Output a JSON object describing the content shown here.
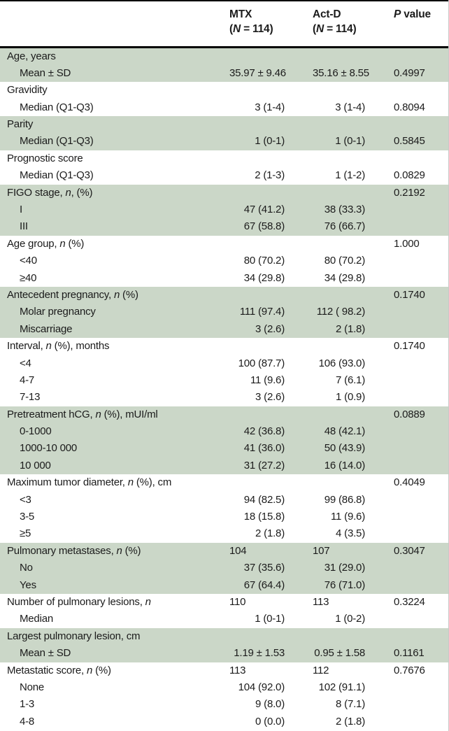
{
  "colors": {
    "section_green": "#cbd7c8",
    "rule_black": "#000000",
    "text": "#1b1b1b",
    "background": "#ffffff"
  },
  "table": {
    "header": {
      "mtx_line1": "MTX",
      "mtx_line2": "(*N* = 114)",
      "actd_line1": "Act-D",
      "actd_line2": "(*N* = 114)",
      "p_label": "*P* value"
    },
    "sections": [
      {
        "green": true,
        "rows": [
          {
            "label": "Age, years",
            "sub": false,
            "mtx": "",
            "actd": "",
            "p": ""
          },
          {
            "label": "Mean ± SD",
            "sub": true,
            "mtx": "35.97 ± 9.46",
            "actd": "35.16 ± 8.55",
            "p": "0.4997"
          }
        ]
      },
      {
        "green": false,
        "rows": [
          {
            "label": "Gravidity",
            "sub": false,
            "mtx": "",
            "actd": "",
            "p": ""
          },
          {
            "label": "Median (Q1-Q3)",
            "sub": true,
            "mtx": "3 (1-4)",
            "actd": "3 (1-4)",
            "p": "0.8094"
          }
        ]
      },
      {
        "green": true,
        "rows": [
          {
            "label": "Parity",
            "sub": false,
            "mtx": "",
            "actd": "",
            "p": ""
          },
          {
            "label": "Median (Q1-Q3)",
            "sub": true,
            "mtx": "1 (0-1)",
            "actd": "1 (0-1)",
            "p": "0.5845"
          }
        ]
      },
      {
        "green": false,
        "rows": [
          {
            "label": "Prognostic score",
            "sub": false,
            "mtx": "",
            "actd": "",
            "p": ""
          },
          {
            "label": "Median (Q1-Q3)",
            "sub": true,
            "mtx": "2 (1-3)",
            "actd": "1 (1-2)",
            "p": "0.0829"
          }
        ]
      },
      {
        "green": true,
        "rows": [
          {
            "label": "FIGO stage, *n*, (%)",
            "sub": false,
            "mtx": "",
            "actd": "",
            "p": "0.2192"
          },
          {
            "label": "I",
            "sub": true,
            "mtx": "47 (41.2)",
            "actd": "38 (33.3)",
            "p": ""
          },
          {
            "label": "III",
            "sub": true,
            "mtx": "67 (58.8)",
            "actd": "76 (66.7)",
            "p": ""
          }
        ]
      },
      {
        "green": false,
        "rows": [
          {
            "label": "Age group, *n* (%)",
            "sub": false,
            "mtx": "",
            "actd": "",
            "p": "1.000"
          },
          {
            "label": "<40",
            "sub": true,
            "mtx": "80 (70.2)",
            "actd": "80 (70.2)",
            "p": ""
          },
          {
            "label": "≥40",
            "sub": true,
            "mtx": "34 (29.8)",
            "actd": "34 (29.8)",
            "p": ""
          }
        ]
      },
      {
        "green": true,
        "rows": [
          {
            "label": "Antecedent pregnancy, *n* (%)",
            "sub": false,
            "mtx": "",
            "actd": "",
            "p": "0.1740"
          },
          {
            "label": "Molar pregnancy",
            "sub": true,
            "mtx": "111 (97.4)",
            "actd": "112 ( 98.2)",
            "p": ""
          },
          {
            "label": "Miscarriage",
            "sub": true,
            "mtx": "3 (2.6)",
            "actd": "2 (1.8)",
            "p": ""
          }
        ]
      },
      {
        "green": false,
        "rows": [
          {
            "label": "Interval, *n* (%), months",
            "sub": false,
            "mtx": "",
            "actd": "",
            "p": "0.1740"
          },
          {
            "label": "<4",
            "sub": true,
            "mtx": "100 (87.7)",
            "actd": "106 (93.0)",
            "p": ""
          },
          {
            "label": "4-7",
            "sub": true,
            "mtx": "11 (9.6)",
            "actd": "7 (6.1)",
            "p": ""
          },
          {
            "label": "7-13",
            "sub": true,
            "mtx": "3 (2.6)",
            "actd": "1 (0.9)",
            "p": ""
          }
        ]
      },
      {
        "green": true,
        "rows": [
          {
            "label": "Pretreatment hCG, *n* (%), mUI/ml",
            "sub": false,
            "mtx": "",
            "actd": "",
            "p": "0.0889"
          },
          {
            "label": "0-1000",
            "sub": true,
            "mtx": "42 (36.8)",
            "actd": "48 (42.1)",
            "p": ""
          },
          {
            "label": "1000-10 000",
            "sub": true,
            "mtx": "41 (36.0)",
            "actd": "50 (43.9)",
            "p": ""
          },
          {
            "label": "10 000",
            "sub": true,
            "mtx": "31 (27.2)",
            "actd": "16 (14.0)",
            "p": ""
          }
        ]
      },
      {
        "green": false,
        "rows": [
          {
            "label": "Maximum tumor diameter, *n* (%), cm",
            "sub": false,
            "mtx": "",
            "actd": "",
            "p": "0.4049"
          },
          {
            "label": "<3",
            "sub": true,
            "mtx": "94 (82.5)",
            "actd": "99 (86.8)",
            "p": ""
          },
          {
            "label": "3-5",
            "sub": true,
            "mtx": "18 (15.8)",
            "actd": "11 (9.6)",
            "p": ""
          },
          {
            "label": "≥5",
            "sub": true,
            "mtx": "2 (1.8)",
            "actd": "4 (3.5)",
            "p": ""
          }
        ]
      },
      {
        "green": true,
        "rows": [
          {
            "label": "Pulmonary metastases, *n* (%)",
            "sub": false,
            "mtx": "104",
            "actd": "107",
            "p": "0.3047"
          },
          {
            "label": "No",
            "sub": true,
            "mtx": "37 (35.6)",
            "actd": "31 (29.0)",
            "p": ""
          },
          {
            "label": "Yes",
            "sub": true,
            "mtx": "67 (64.4)",
            "actd": "76 (71.0)",
            "p": ""
          }
        ]
      },
      {
        "green": false,
        "rows": [
          {
            "label": "Number of pulmonary lesions, *n*",
            "sub": false,
            "mtx": "110",
            "actd": "113",
            "p": "0.3224"
          },
          {
            "label": "Median",
            "sub": true,
            "mtx": "1 (0-1)",
            "actd": "1 (0-2)",
            "p": ""
          }
        ]
      },
      {
        "green": true,
        "rows": [
          {
            "label": "Largest pulmonary lesion, cm",
            "sub": false,
            "mtx": "",
            "actd": "",
            "p": ""
          },
          {
            "label": "Mean ± SD",
            "sub": true,
            "mtx": "1.19 ± 1.53",
            "actd": "0.95 ± 1.58",
            "p": "0.1161"
          }
        ]
      },
      {
        "green": false,
        "rows": [
          {
            "label": "Metastatic score, *n* (%)",
            "sub": false,
            "mtx": "113",
            "actd": "112",
            "p": "0.7676"
          },
          {
            "label": "None",
            "sub": true,
            "mtx": "104 (92.0)",
            "actd": "102 (91.1)",
            "p": ""
          },
          {
            "label": "1-3",
            "sub": true,
            "mtx": "9 (8.0)",
            "actd": "8 (7.1)",
            "p": ""
          },
          {
            "label": "4-8",
            "sub": true,
            "mtx": "0 (0.0)",
            "actd": "2 (1.8)",
            "p": ""
          }
        ]
      }
    ]
  }
}
